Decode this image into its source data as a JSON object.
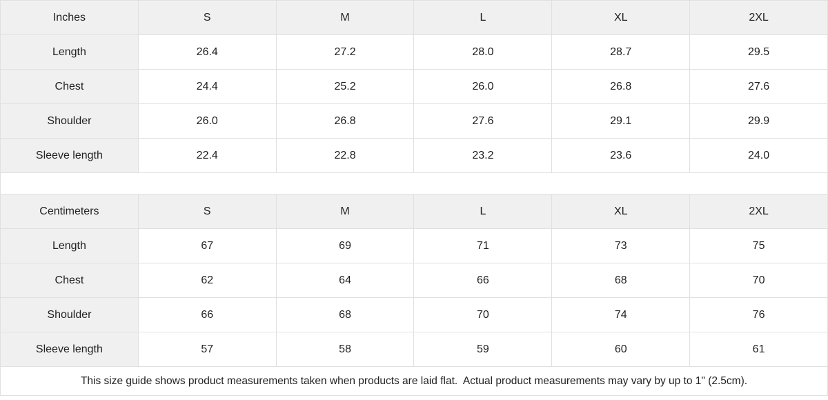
{
  "tables": [
    {
      "unit_label": "Inches",
      "sizes": [
        "S",
        "M",
        "L",
        "XL",
        "2XL"
      ],
      "rows": [
        {
          "label": "Length",
          "values": [
            "26.4",
            "27.2",
            "28.0",
            "28.7",
            "29.5"
          ]
        },
        {
          "label": "Chest",
          "values": [
            "24.4",
            "25.2",
            "26.0",
            "26.8",
            "27.6"
          ]
        },
        {
          "label": "Shoulder",
          "values": [
            "26.0",
            "26.8",
            "27.6",
            "29.1",
            "29.9"
          ]
        },
        {
          "label": "Sleeve length",
          "values": [
            "22.4",
            "22.8",
            "23.2",
            "23.6",
            "24.0"
          ]
        }
      ]
    },
    {
      "unit_label": "Centimeters",
      "sizes": [
        "S",
        "M",
        "L",
        "XL",
        "2XL"
      ],
      "rows": [
        {
          "label": "Length",
          "values": [
            "67",
            "69",
            "71",
            "73",
            "75"
          ]
        },
        {
          "label": "Chest",
          "values": [
            "62",
            "64",
            "66",
            "68",
            "70"
          ]
        },
        {
          "label": "Shoulder",
          "values": [
            "66",
            "68",
            "70",
            "74",
            "76"
          ]
        },
        {
          "label": "Sleeve length",
          "values": [
            "57",
            "58",
            "59",
            "60",
            "61"
          ]
        }
      ]
    }
  ],
  "footer_note": "This size guide shows product measurements taken when products are laid flat.  Actual product measurements may vary by up to 1\" (2.5cm).",
  "colors": {
    "header_bg": "#f0f0f0",
    "border": "#e0e0e0",
    "text": "#222222"
  }
}
